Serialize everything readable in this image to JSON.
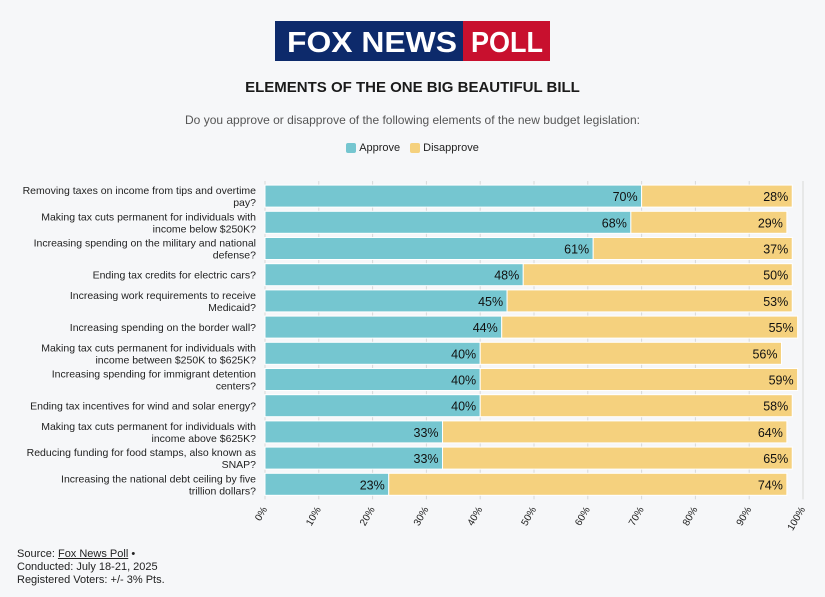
{
  "header": {
    "logo_text": "FOX NEWS POLL",
    "title": "ELEMENTS OF THE ONE BIG BEAUTIFUL BILL",
    "subtitle": "Do you approve or disapprove of the following elements of the new budget legislation:"
  },
  "legend": [
    {
      "label": "Approve",
      "color": "#75c6d0"
    },
    {
      "label": "Disapprove",
      "color": "#f5d17e"
    }
  ],
  "chart_data": {
    "type": "bar",
    "orientation": "horizontal",
    "stacked": true,
    "title": "ELEMENTS OF THE ONE BIG BEAUTIFUL BILL",
    "subtitle": "Do you approve or disapprove of the following elements of the new budget legislation:",
    "xlim": [
      0,
      100
    ],
    "x_ticks": [
      "0%",
      "10%",
      "20%",
      "30%",
      "40%",
      "50%",
      "60%",
      "70%",
      "80%",
      "90%",
      "100%"
    ],
    "grid": true,
    "legend_position": "top-center",
    "categories": [
      "Removing taxes on income from tips and overtime pay?",
      "Making tax cuts permanent for individuals with income below $250K?",
      "Increasing spending on the military and national defense?",
      "Ending tax credits for electric cars?",
      "Increasing work requirements to receive Medicaid?",
      "Increasing spending on the border wall?",
      "Making tax cuts permanent for individuals with income between $250K to $625K?",
      "Increasing spending for immigrant detention centers?",
      "Ending tax incentives for wind and solar energy?",
      "Making tax cuts permanent for individuals with income above $625K?",
      "Reducing funding for food stamps, also known as SNAP?",
      "Increasing the national debt ceiling by five trillion dollars?"
    ],
    "series": [
      {
        "name": "Approve",
        "color": "#75c6d0",
        "values": [
          70,
          68,
          61,
          48,
          45,
          44,
          40,
          40,
          40,
          33,
          33,
          23
        ]
      },
      {
        "name": "Disapprove",
        "color": "#f5d17e",
        "values": [
          28,
          29,
          37,
          50,
          53,
          55,
          56,
          59,
          58,
          64,
          65,
          74
        ]
      }
    ]
  },
  "footer": {
    "source_label": "Source: ",
    "source_link": "Fox News Poll",
    "source_suffix": " •",
    "conducted": "Conducted: July 18-21, 2025",
    "voters": "Registered Voters: +/- 3% Pts."
  }
}
